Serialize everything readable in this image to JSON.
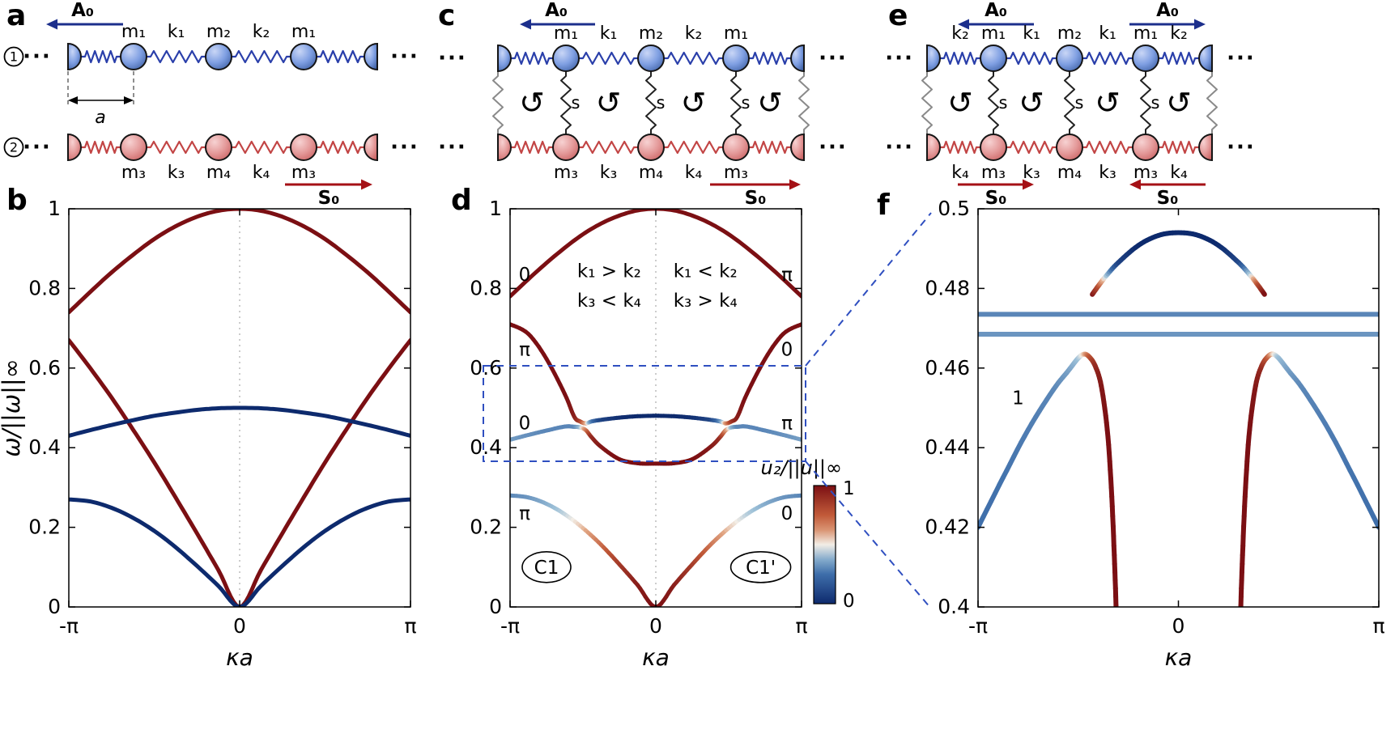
{
  "panels": {
    "a": "a",
    "b": "b",
    "c": "c",
    "d": "d",
    "e": "e",
    "f": "f"
  },
  "diagrams": {
    "a": {
      "top_arrow_label": "A₀",
      "bottom_arrow_label": "S₀",
      "chain1_symbol": "1",
      "chain2_symbol": "2",
      "dots": "···",
      "top_labels": [
        "m₁",
        "k₁",
        "m₂",
        "k₂",
        "m₁"
      ],
      "bottom_labels": [
        "m₃",
        "k₃",
        "m₄",
        "k₄",
        "m₃"
      ],
      "lattice_label": "a"
    },
    "c": {
      "top_arrow_label": "A₀",
      "bottom_arrow_label": "S₀",
      "dots": "···",
      "top_labels": [
        "m₁",
        "k₁",
        "m₂",
        "k₂",
        "m₁"
      ],
      "bottom_labels": [
        "m₃",
        "k₃",
        "m₄",
        "k₄",
        "m₃"
      ],
      "coupling_label": "s",
      "rotation_icon": "↺"
    },
    "e": {
      "top_arrow_labels": [
        "A₀",
        "A₀"
      ],
      "bottom_arrow_labels": [
        "S₀",
        "S₀"
      ],
      "dots": "···",
      "top_labels": [
        "k₂",
        "m₁",
        "k₁",
        "m₂",
        "k₁",
        "m₁",
        "k₂"
      ],
      "bottom_labels": [
        "k₄",
        "m₃",
        "k₃",
        "m₄",
        "k₃",
        "m₃",
        "k₄"
      ],
      "coupling_label": "s",
      "rotation_icon": "↺"
    }
  },
  "colors": {
    "chain1_accent": "#1c2f8c",
    "chain2_accent": "#a51116",
    "spring_blue": "#2a3faa",
    "spring_red": "#c24545",
    "coupling_spring": "#222222",
    "edge_spring": "#8a8a8a",
    "rotation_gray": "#6e6e6e",
    "zoom_dash": "#2f4fc0",
    "colormap": [
      [
        0,
        "#0d2a6d"
      ],
      [
        0.25,
        "#3e6eaa"
      ],
      [
        0.42,
        "#9ec1d8"
      ],
      [
        0.5,
        "#f2ede6"
      ],
      [
        0.58,
        "#e2a886"
      ],
      [
        0.75,
        "#c15a39"
      ],
      [
        1,
        "#7b0f13"
      ]
    ]
  },
  "chart_data": [
    {
      "id": "b",
      "type": "line",
      "xlabel": "κa",
      "ylabel": "ω/||ω||∞",
      "xlim": [
        -1,
        1
      ],
      "ylim": [
        0,
        1
      ],
      "x_unit": "pi",
      "grid": false,
      "center_line": true,
      "xticks": [
        {
          "v": -1,
          "label": "-π"
        },
        {
          "v": 0,
          "label": "0"
        },
        {
          "v": 1,
          "label": "π"
        }
      ],
      "yticks": [
        {
          "v": 0,
          "label": "0"
        },
        {
          "v": 0.2,
          "label": "0.2"
        },
        {
          "v": 0.4,
          "label": "0.4"
        },
        {
          "v": 0.6,
          "label": "0.6"
        },
        {
          "v": 0.8,
          "label": "0.8"
        },
        {
          "v": 1,
          "label": "1"
        }
      ],
      "bands": [
        {
          "name": "stress-chain-acoustic",
          "sym": true,
          "c": 1,
          "t": [
            0,
            0.125,
            0.25,
            0.375,
            0.5,
            0.625,
            0.75,
            0.875,
            1
          ],
          "y": [
            0,
            0.093,
            0.185,
            0.275,
            0.363,
            0.446,
            0.526,
            0.6,
            0.67
          ]
        },
        {
          "name": "stress-chain-optical",
          "sym": true,
          "c": 1,
          "t": [
            0,
            0.125,
            0.25,
            0.375,
            0.5,
            0.625,
            0.75,
            0.875,
            1
          ],
          "y": [
            1.0,
            0.995,
            0.98,
            0.956,
            0.924,
            0.884,
            0.84,
            0.791,
            0.74
          ]
        },
        {
          "name": "amplitude-chain-acoustic",
          "sym": true,
          "c": 0,
          "t": [
            0,
            0.125,
            0.25,
            0.375,
            0.5,
            0.625,
            0.75,
            0.875,
            1
          ],
          "y": [
            0,
            0.053,
            0.103,
            0.15,
            0.191,
            0.224,
            0.249,
            0.265,
            0.27
          ]
        },
        {
          "name": "amplitude-chain-optical",
          "sym": true,
          "c": 0,
          "t": [
            0,
            0.125,
            0.25,
            0.375,
            0.5,
            0.625,
            0.75,
            0.875,
            1
          ],
          "y": [
            0.5,
            0.499,
            0.495,
            0.488,
            0.48,
            0.469,
            0.457,
            0.444,
            0.43
          ]
        }
      ],
      "annotations": []
    },
    {
      "id": "d",
      "type": "line",
      "xlabel": "κa",
      "xlim": [
        -1,
        1
      ],
      "ylim": [
        0,
        1
      ],
      "x_unit": "pi",
      "grid": false,
      "center_line": true,
      "xticks": [
        {
          "v": -1,
          "label": "-π"
        },
        {
          "v": 0,
          "label": "0"
        },
        {
          "v": 1,
          "label": "π"
        }
      ],
      "yticks": [
        {
          "v": 0,
          "label": "0"
        },
        {
          "v": 0.2,
          "label": "0.2"
        },
        {
          "v": 0.4,
          "label": "0.4"
        },
        {
          "v": 0.6,
          "label": "0.6"
        },
        {
          "v": 0.8,
          "label": "0.8"
        },
        {
          "v": 1,
          "label": "1"
        }
      ],
      "bands": [
        {
          "name": "top-optical",
          "sym": true,
          "c": 1,
          "t": [
            0,
            0.125,
            0.25,
            0.375,
            0.5,
            0.625,
            0.75,
            0.875,
            1
          ],
          "y": [
            1.0,
            0.996,
            0.983,
            0.963,
            0.936,
            0.902,
            0.864,
            0.823,
            0.78
          ]
        },
        {
          "name": "upper-hybrid",
          "sym": true,
          "t": [
            0,
            0.125,
            0.25,
            0.375,
            0.44,
            0.48,
            0.52,
            0.56,
            0.625,
            0.75,
            0.875,
            1
          ],
          "y": [
            0.48,
            0.479,
            0.4755,
            0.47,
            0.466,
            0.461,
            0.466,
            0.478,
            0.535,
            0.623,
            0.686,
            0.71
          ],
          "c": [
            0,
            0,
            0.02,
            0.1,
            0.3,
            0.6,
            0.85,
            0.95,
            1,
            1,
            1,
            1
          ]
        },
        {
          "name": "lower-hybrid",
          "sym": true,
          "t": [
            0,
            0.125,
            0.25,
            0.375,
            0.44,
            0.48,
            0.52,
            0.56,
            0.625,
            0.75,
            0.875,
            1
          ],
          "y": [
            0.36,
            0.361,
            0.371,
            0.402,
            0.426,
            0.444,
            0.451,
            0.4525,
            0.453,
            0.443,
            0.432,
            0.42
          ],
          "c": [
            1,
            1,
            1,
            0.97,
            0.9,
            0.65,
            0.4,
            0.3,
            0.3,
            0.3,
            0.32,
            0.35
          ]
        },
        {
          "name": "acoustic",
          "sym": true,
          "t": [
            0,
            0.125,
            0.25,
            0.375,
            0.5,
            0.625,
            0.75,
            0.875,
            1
          ],
          "y": [
            0,
            0.055,
            0.107,
            0.156,
            0.198,
            0.233,
            0.259,
            0.275,
            0.28
          ],
          "c": [
            1,
            0.95,
            0.85,
            0.7,
            0.55,
            0.45,
            0.38,
            0.33,
            0.3
          ]
        }
      ],
      "annotations": [
        {
          "text": "0",
          "x": -0.9,
          "y": 0.835,
          "kind": "zak-phase-label"
        },
        {
          "text": "π",
          "x": -0.9,
          "y": 0.647,
          "kind": "zak-phase-label"
        },
        {
          "text": "0",
          "x": -0.9,
          "y": 0.462,
          "kind": "zak-phase-label"
        },
        {
          "text": "π",
          "x": -0.9,
          "y": 0.236,
          "kind": "zak-phase-label"
        },
        {
          "text": "π",
          "x": 0.9,
          "y": 0.835,
          "kind": "zak-phase-label"
        },
        {
          "text": "0",
          "x": 0.9,
          "y": 0.647,
          "kind": "zak-phase-label"
        },
        {
          "text": "π",
          "x": 0.9,
          "y": 0.462,
          "kind": "zak-phase-label"
        },
        {
          "text": "0",
          "x": 0.9,
          "y": 0.236,
          "kind": "zak-phase-label"
        },
        {
          "text": "k₁ > k₂",
          "x": -0.32,
          "y": 0.845,
          "kind": "parameter-regime-label"
        },
        {
          "text": "k₁ < k₂",
          "x": 0.34,
          "y": 0.845,
          "kind": "parameter-regime-label"
        },
        {
          "text": "k₃ < k₄",
          "x": -0.32,
          "y": 0.77,
          "kind": "parameter-regime-label"
        },
        {
          "text": "k₃ > k₄",
          "x": 0.34,
          "y": 0.77,
          "kind": "parameter-regime-label"
        },
        {
          "text": "C1",
          "x": -0.75,
          "y": 0.1,
          "circled": true,
          "kind": "invariant-label"
        },
        {
          "text": "C1'",
          "x": 0.72,
          "y": 0.1,
          "circled": true,
          "kind": "invariant-label"
        }
      ],
      "colorbar": {
        "title": "u₂/||u||∞",
        "top_label": "1",
        "bottom_label": "0"
      }
    },
    {
      "id": "f",
      "type": "line",
      "xlabel": "κa",
      "xlim": [
        -1,
        1
      ],
      "ylim": [
        0.4,
        0.5
      ],
      "x_unit": "pi",
      "grid": false,
      "center_line": false,
      "xticks": [
        {
          "v": -1,
          "label": "-π"
        },
        {
          "v": 0,
          "label": "0"
        },
        {
          "v": 1,
          "label": "π"
        }
      ],
      "yticks": [
        {
          "v": 0.4,
          "label": "0.4"
        },
        {
          "v": 0.42,
          "label": "0.42"
        },
        {
          "v": 0.44,
          "label": "0.44"
        },
        {
          "v": 0.46,
          "label": "0.46"
        },
        {
          "v": 0.48,
          "label": "0.48"
        },
        {
          "v": 0.5,
          "label": "0.5"
        }
      ],
      "bands": [
        {
          "name": "upper-hump",
          "sym": true,
          "t": [
            0,
            0.1,
            0.2,
            0.3,
            0.36,
            0.4,
            0.43
          ],
          "y": [
            0.494,
            0.4933,
            0.4908,
            0.4865,
            0.4832,
            0.4806,
            0.4785
          ],
          "c": [
            0,
            0,
            0,
            0.1,
            0.45,
            0.8,
            1
          ]
        },
        {
          "name": "flat-state-1",
          "sym": true,
          "t": [
            0,
            1
          ],
          "y": [
            0.4735,
            0.4735
          ],
          "c": [
            0.3,
            0.3
          ]
        },
        {
          "name": "flat-state-2",
          "sym": true,
          "t": [
            0,
            1
          ],
          "y": [
            0.4685,
            0.4685
          ],
          "c": [
            0.33,
            0.33
          ]
        },
        {
          "name": "lower-horn",
          "sym": true,
          "t": [
            0.3,
            0.31,
            0.32,
            0.335,
            0.355,
            0.385,
            0.415,
            0.445,
            0.47,
            0.5,
            0.55,
            0.625,
            0.75,
            0.875,
            1.0
          ],
          "y": [
            0.378,
            0.398,
            0.413,
            0.43,
            0.4445,
            0.4555,
            0.4605,
            0.4628,
            0.4635,
            0.4625,
            0.4593,
            0.4545,
            0.4445,
            0.4325,
            0.42
          ],
          "c": [
            1,
            1,
            1,
            1,
            1,
            0.97,
            0.9,
            0.75,
            0.55,
            0.42,
            0.35,
            0.3,
            0.28,
            0.26,
            0.25
          ]
        }
      ],
      "annotations": [
        {
          "text": "1",
          "x": -0.8,
          "y": 0.4525,
          "kind": "band-index-label"
        }
      ]
    }
  ],
  "zoom_link": {
    "box_panel": "d",
    "target_panel": "f"
  }
}
